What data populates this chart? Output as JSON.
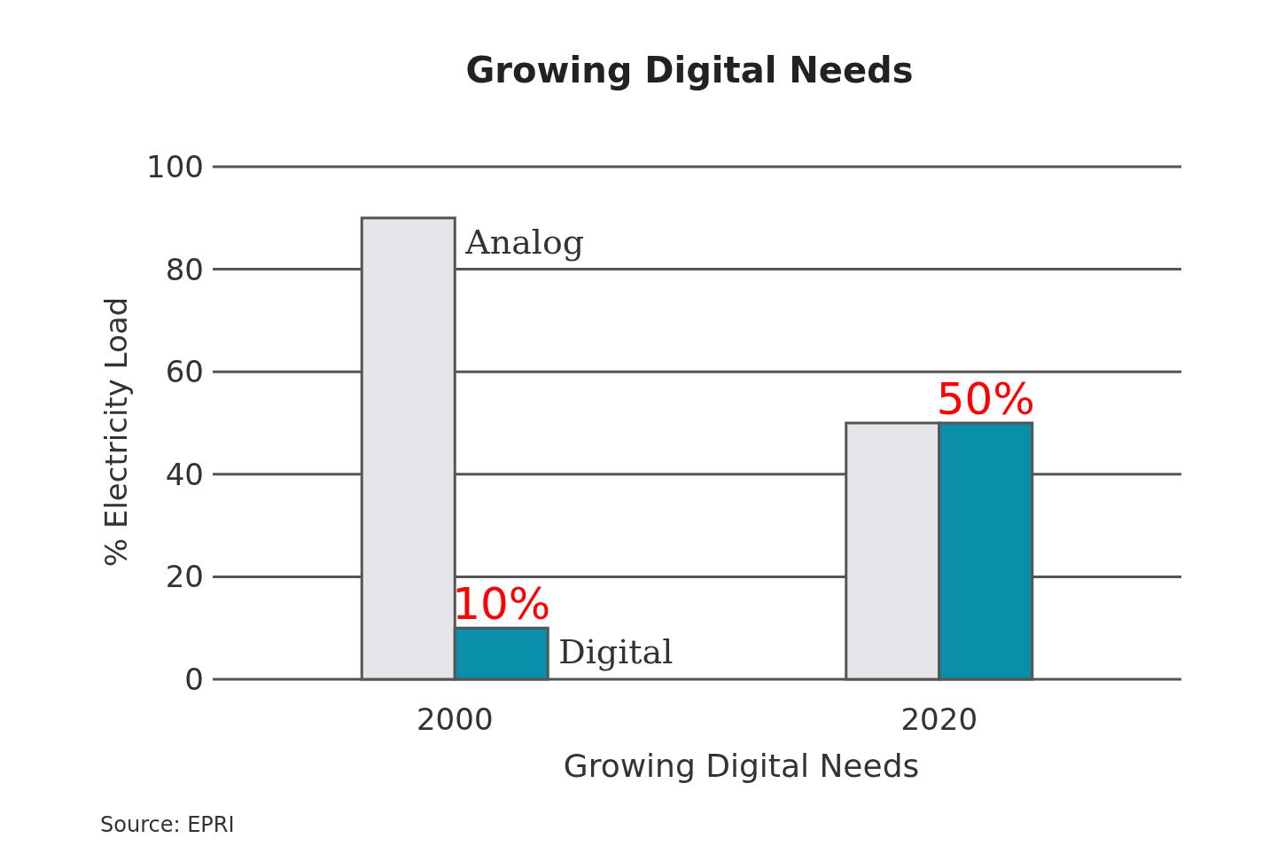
{
  "chart_data": {
    "type": "bar",
    "title": "Growing Digital Needs",
    "xlabel": "Growing Digital Needs",
    "ylabel": "% Electricity Load",
    "categories": [
      "2000",
      "2020"
    ],
    "series": [
      {
        "name": "Analog",
        "color": "#e6e6ea",
        "values": [
          90,
          50
        ]
      },
      {
        "name": "Digital",
        "color": "#0a8faa",
        "values": [
          10,
          50
        ],
        "value_labels": [
          "10%",
          "50%"
        ]
      }
    ],
    "ylim": [
      0,
      100
    ],
    "yticks": [
      0,
      20,
      40,
      60,
      80,
      100
    ],
    "grid": "y",
    "annotations": [
      "Source: EPRI"
    ]
  }
}
